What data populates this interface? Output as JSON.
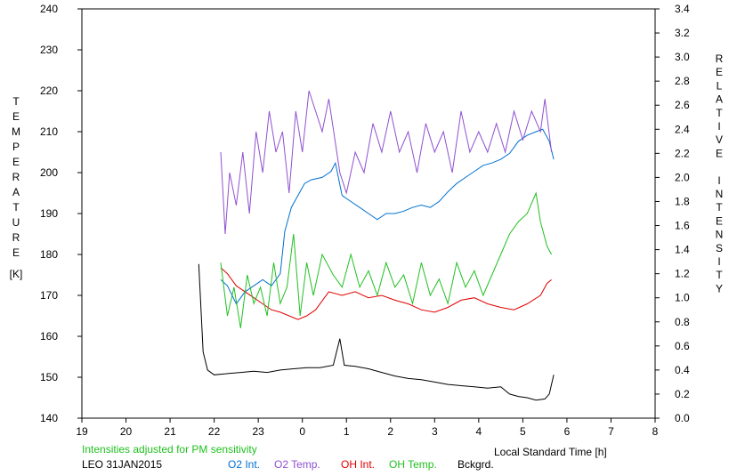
{
  "chart_data": {
    "type": "line",
    "x_axis": {
      "label": "Local Standard Time [h]",
      "range": [
        19,
        32
      ],
      "ticks": [
        19,
        20,
        21,
        22,
        23,
        24,
        25,
        26,
        27,
        28,
        29,
        30,
        31,
        32
      ],
      "tick_labels": [
        "19",
        "20",
        "21",
        "22",
        "23",
        "0",
        "1",
        "2",
        "3",
        "4",
        "5",
        "6",
        "7",
        "8"
      ]
    },
    "y_left": {
      "label_letters": [
        "T",
        "E",
        "M",
        "P",
        "E",
        "R",
        "A",
        "T",
        "U",
        "R",
        "E"
      ],
      "unit": "[K]",
      "range": [
        140,
        240
      ],
      "ticks": [
        140,
        150,
        160,
        170,
        180,
        190,
        200,
        210,
        220,
        230,
        240
      ],
      "tick_labels": [
        "140",
        "150",
        "160",
        "170",
        "180",
        "190",
        "200",
        "210",
        "220",
        "230",
        "240"
      ]
    },
    "y_right": {
      "label_letters": [
        "R",
        "E",
        "L",
        "A",
        "T",
        "I",
        "V",
        "E",
        "",
        "I",
        "N",
        "T",
        "E",
        "N",
        "S",
        "I",
        "T",
        "Y"
      ],
      "range": [
        0,
        3.4
      ],
      "ticks": [
        0,
        0.2,
        0.4,
        0.6,
        0.8,
        1.0,
        1.2,
        1.4,
        1.6,
        1.8,
        2.0,
        2.2,
        2.4,
        2.6,
        2.8,
        3.0,
        3.2,
        3.4
      ],
      "tick_labels": [
        "0.0",
        "0.2",
        "0.4",
        "0.6",
        "0.8",
        "1.0",
        "1.2",
        "1.4",
        "1.6",
        "1.8",
        "2.0",
        "2.2",
        "2.4",
        "2.6",
        "2.8",
        "3.0",
        "3.2",
        "3.4"
      ]
    },
    "note": "Intensities adjusted for PM sensitivity",
    "station_label": "LEO 31JAN2015",
    "grid": false,
    "legend_placement": "bottom",
    "series": [
      {
        "name": "O2 Int.",
        "axis": "right",
        "color": "#0070d0",
        "points": [
          [
            22.15,
            1.15
          ],
          [
            22.3,
            1.1
          ],
          [
            22.5,
            0.95
          ],
          [
            22.7,
            1.05
          ],
          [
            22.9,
            1.1
          ],
          [
            23.1,
            1.15
          ],
          [
            23.3,
            1.1
          ],
          [
            23.5,
            1.2
          ],
          [
            23.6,
            1.55
          ],
          [
            23.75,
            1.75
          ],
          [
            23.9,
            1.85
          ],
          [
            24.05,
            1.95
          ],
          [
            24.2,
            1.98
          ],
          [
            24.45,
            2.0
          ],
          [
            24.65,
            2.05
          ],
          [
            24.75,
            2.12
          ],
          [
            24.9,
            1.85
          ],
          [
            25.1,
            1.8
          ],
          [
            25.3,
            1.75
          ],
          [
            25.5,
            1.7
          ],
          [
            25.7,
            1.65
          ],
          [
            25.9,
            1.7
          ],
          [
            26.1,
            1.7
          ],
          [
            26.3,
            1.72
          ],
          [
            26.5,
            1.75
          ],
          [
            26.7,
            1.77
          ],
          [
            26.9,
            1.75
          ],
          [
            27.1,
            1.8
          ],
          [
            27.3,
            1.88
          ],
          [
            27.5,
            1.95
          ],
          [
            27.7,
            2.0
          ],
          [
            27.9,
            2.05
          ],
          [
            28.1,
            2.1
          ],
          [
            28.3,
            2.12
          ],
          [
            28.5,
            2.15
          ],
          [
            28.7,
            2.2
          ],
          [
            28.9,
            2.3
          ],
          [
            29.1,
            2.35
          ],
          [
            29.3,
            2.38
          ],
          [
            29.45,
            2.4
          ],
          [
            29.6,
            2.3
          ],
          [
            29.7,
            2.15
          ]
        ]
      },
      {
        "name": "O2 Temp.",
        "axis": "left",
        "color": "#9050d0",
        "points": [
          [
            22.15,
            205
          ],
          [
            22.25,
            185
          ],
          [
            22.35,
            200
          ],
          [
            22.5,
            192
          ],
          [
            22.65,
            205
          ],
          [
            22.8,
            190
          ],
          [
            22.95,
            210
          ],
          [
            23.1,
            200
          ],
          [
            23.25,
            215
          ],
          [
            23.4,
            205
          ],
          [
            23.55,
            210
          ],
          [
            23.7,
            195
          ],
          [
            23.85,
            215
          ],
          [
            24.0,
            205
          ],
          [
            24.15,
            220
          ],
          [
            24.3,
            215
          ],
          [
            24.45,
            210
          ],
          [
            24.6,
            218
          ],
          [
            24.85,
            200
          ],
          [
            25.0,
            195
          ],
          [
            25.2,
            205
          ],
          [
            25.4,
            200
          ],
          [
            25.6,
            212
          ],
          [
            25.8,
            205
          ],
          [
            26.0,
            215
          ],
          [
            26.2,
            205
          ],
          [
            26.4,
            210
          ],
          [
            26.6,
            200
          ],
          [
            26.8,
            212
          ],
          [
            27.0,
            205
          ],
          [
            27.2,
            210
          ],
          [
            27.4,
            200
          ],
          [
            27.6,
            215
          ],
          [
            27.8,
            205
          ],
          [
            28.0,
            210
          ],
          [
            28.2,
            205
          ],
          [
            28.4,
            212
          ],
          [
            28.6,
            205
          ],
          [
            28.8,
            215
          ],
          [
            29.0,
            208
          ],
          [
            29.2,
            215
          ],
          [
            29.4,
            210
          ],
          [
            29.5,
            218
          ],
          [
            29.65,
            205
          ]
        ]
      },
      {
        "name": "OH Int.",
        "axis": "right",
        "color": "#e00000",
        "points": [
          [
            22.15,
            1.25
          ],
          [
            22.3,
            1.2
          ],
          [
            22.5,
            1.1
          ],
          [
            22.7,
            1.05
          ],
          [
            22.9,
            1.0
          ],
          [
            23.1,
            0.95
          ],
          [
            23.3,
            0.9
          ],
          [
            23.5,
            0.88
          ],
          [
            23.7,
            0.85
          ],
          [
            23.9,
            0.82
          ],
          [
            24.1,
            0.85
          ],
          [
            24.3,
            0.9
          ],
          [
            24.6,
            1.05
          ],
          [
            24.9,
            1.02
          ],
          [
            25.2,
            1.05
          ],
          [
            25.5,
            1.0
          ],
          [
            25.8,
            1.02
          ],
          [
            26.1,
            0.98
          ],
          [
            26.4,
            0.95
          ],
          [
            26.7,
            0.9
          ],
          [
            27.0,
            0.88
          ],
          [
            27.3,
            0.92
          ],
          [
            27.6,
            0.98
          ],
          [
            27.9,
            1.0
          ],
          [
            28.2,
            0.95
          ],
          [
            28.5,
            0.92
          ],
          [
            28.8,
            0.9
          ],
          [
            29.1,
            0.95
          ],
          [
            29.4,
            1.02
          ],
          [
            29.55,
            1.12
          ],
          [
            29.65,
            1.15
          ]
        ]
      },
      {
        "name": "OH Temp.",
        "axis": "left",
        "color": "#20c020",
        "points": [
          [
            22.15,
            178
          ],
          [
            22.3,
            165
          ],
          [
            22.45,
            172
          ],
          [
            22.6,
            162
          ],
          [
            22.75,
            175
          ],
          [
            22.9,
            168
          ],
          [
            23.05,
            172
          ],
          [
            23.2,
            165
          ],
          [
            23.35,
            178
          ],
          [
            23.5,
            168
          ],
          [
            23.65,
            172
          ],
          [
            23.8,
            185
          ],
          [
            23.95,
            165
          ],
          [
            24.1,
            178
          ],
          [
            24.25,
            170
          ],
          [
            24.45,
            180
          ],
          [
            24.7,
            175
          ],
          [
            24.9,
            172
          ],
          [
            25.1,
            180
          ],
          [
            25.3,
            172
          ],
          [
            25.5,
            176
          ],
          [
            25.7,
            170
          ],
          [
            25.9,
            178
          ],
          [
            26.1,
            172
          ],
          [
            26.3,
            175
          ],
          [
            26.5,
            168
          ],
          [
            26.7,
            178
          ],
          [
            26.9,
            170
          ],
          [
            27.1,
            174
          ],
          [
            27.3,
            168
          ],
          [
            27.5,
            178
          ],
          [
            27.7,
            172
          ],
          [
            27.9,
            176
          ],
          [
            28.1,
            170
          ],
          [
            28.3,
            175
          ],
          [
            28.5,
            180
          ],
          [
            28.7,
            185
          ],
          [
            28.9,
            188
          ],
          [
            29.1,
            190
          ],
          [
            29.3,
            195
          ],
          [
            29.4,
            188
          ],
          [
            29.55,
            182
          ],
          [
            29.65,
            180
          ]
        ]
      },
      {
        "name": "Bckgrd.",
        "axis": "right",
        "color": "#000000",
        "points": [
          [
            21.65,
            1.28
          ],
          [
            21.75,
            0.55
          ],
          [
            21.85,
            0.4
          ],
          [
            22.0,
            0.36
          ],
          [
            22.3,
            0.37
          ],
          [
            22.6,
            0.38
          ],
          [
            22.9,
            0.39
          ],
          [
            23.2,
            0.38
          ],
          [
            23.5,
            0.4
          ],
          [
            23.8,
            0.41
          ],
          [
            24.1,
            0.42
          ],
          [
            24.4,
            0.42
          ],
          [
            24.7,
            0.44
          ],
          [
            24.85,
            0.66
          ],
          [
            24.95,
            0.44
          ],
          [
            25.2,
            0.43
          ],
          [
            25.5,
            0.41
          ],
          [
            25.8,
            0.38
          ],
          [
            26.1,
            0.35
          ],
          [
            26.4,
            0.33
          ],
          [
            26.7,
            0.32
          ],
          [
            27.0,
            0.3
          ],
          [
            27.3,
            0.28
          ],
          [
            27.6,
            0.27
          ],
          [
            27.9,
            0.26
          ],
          [
            28.2,
            0.25
          ],
          [
            28.5,
            0.26
          ],
          [
            28.7,
            0.2
          ],
          [
            28.9,
            0.18
          ],
          [
            29.1,
            0.17
          ],
          [
            29.3,
            0.15
          ],
          [
            29.5,
            0.16
          ],
          [
            29.6,
            0.2
          ],
          [
            29.7,
            0.36
          ]
        ]
      }
    ]
  }
}
